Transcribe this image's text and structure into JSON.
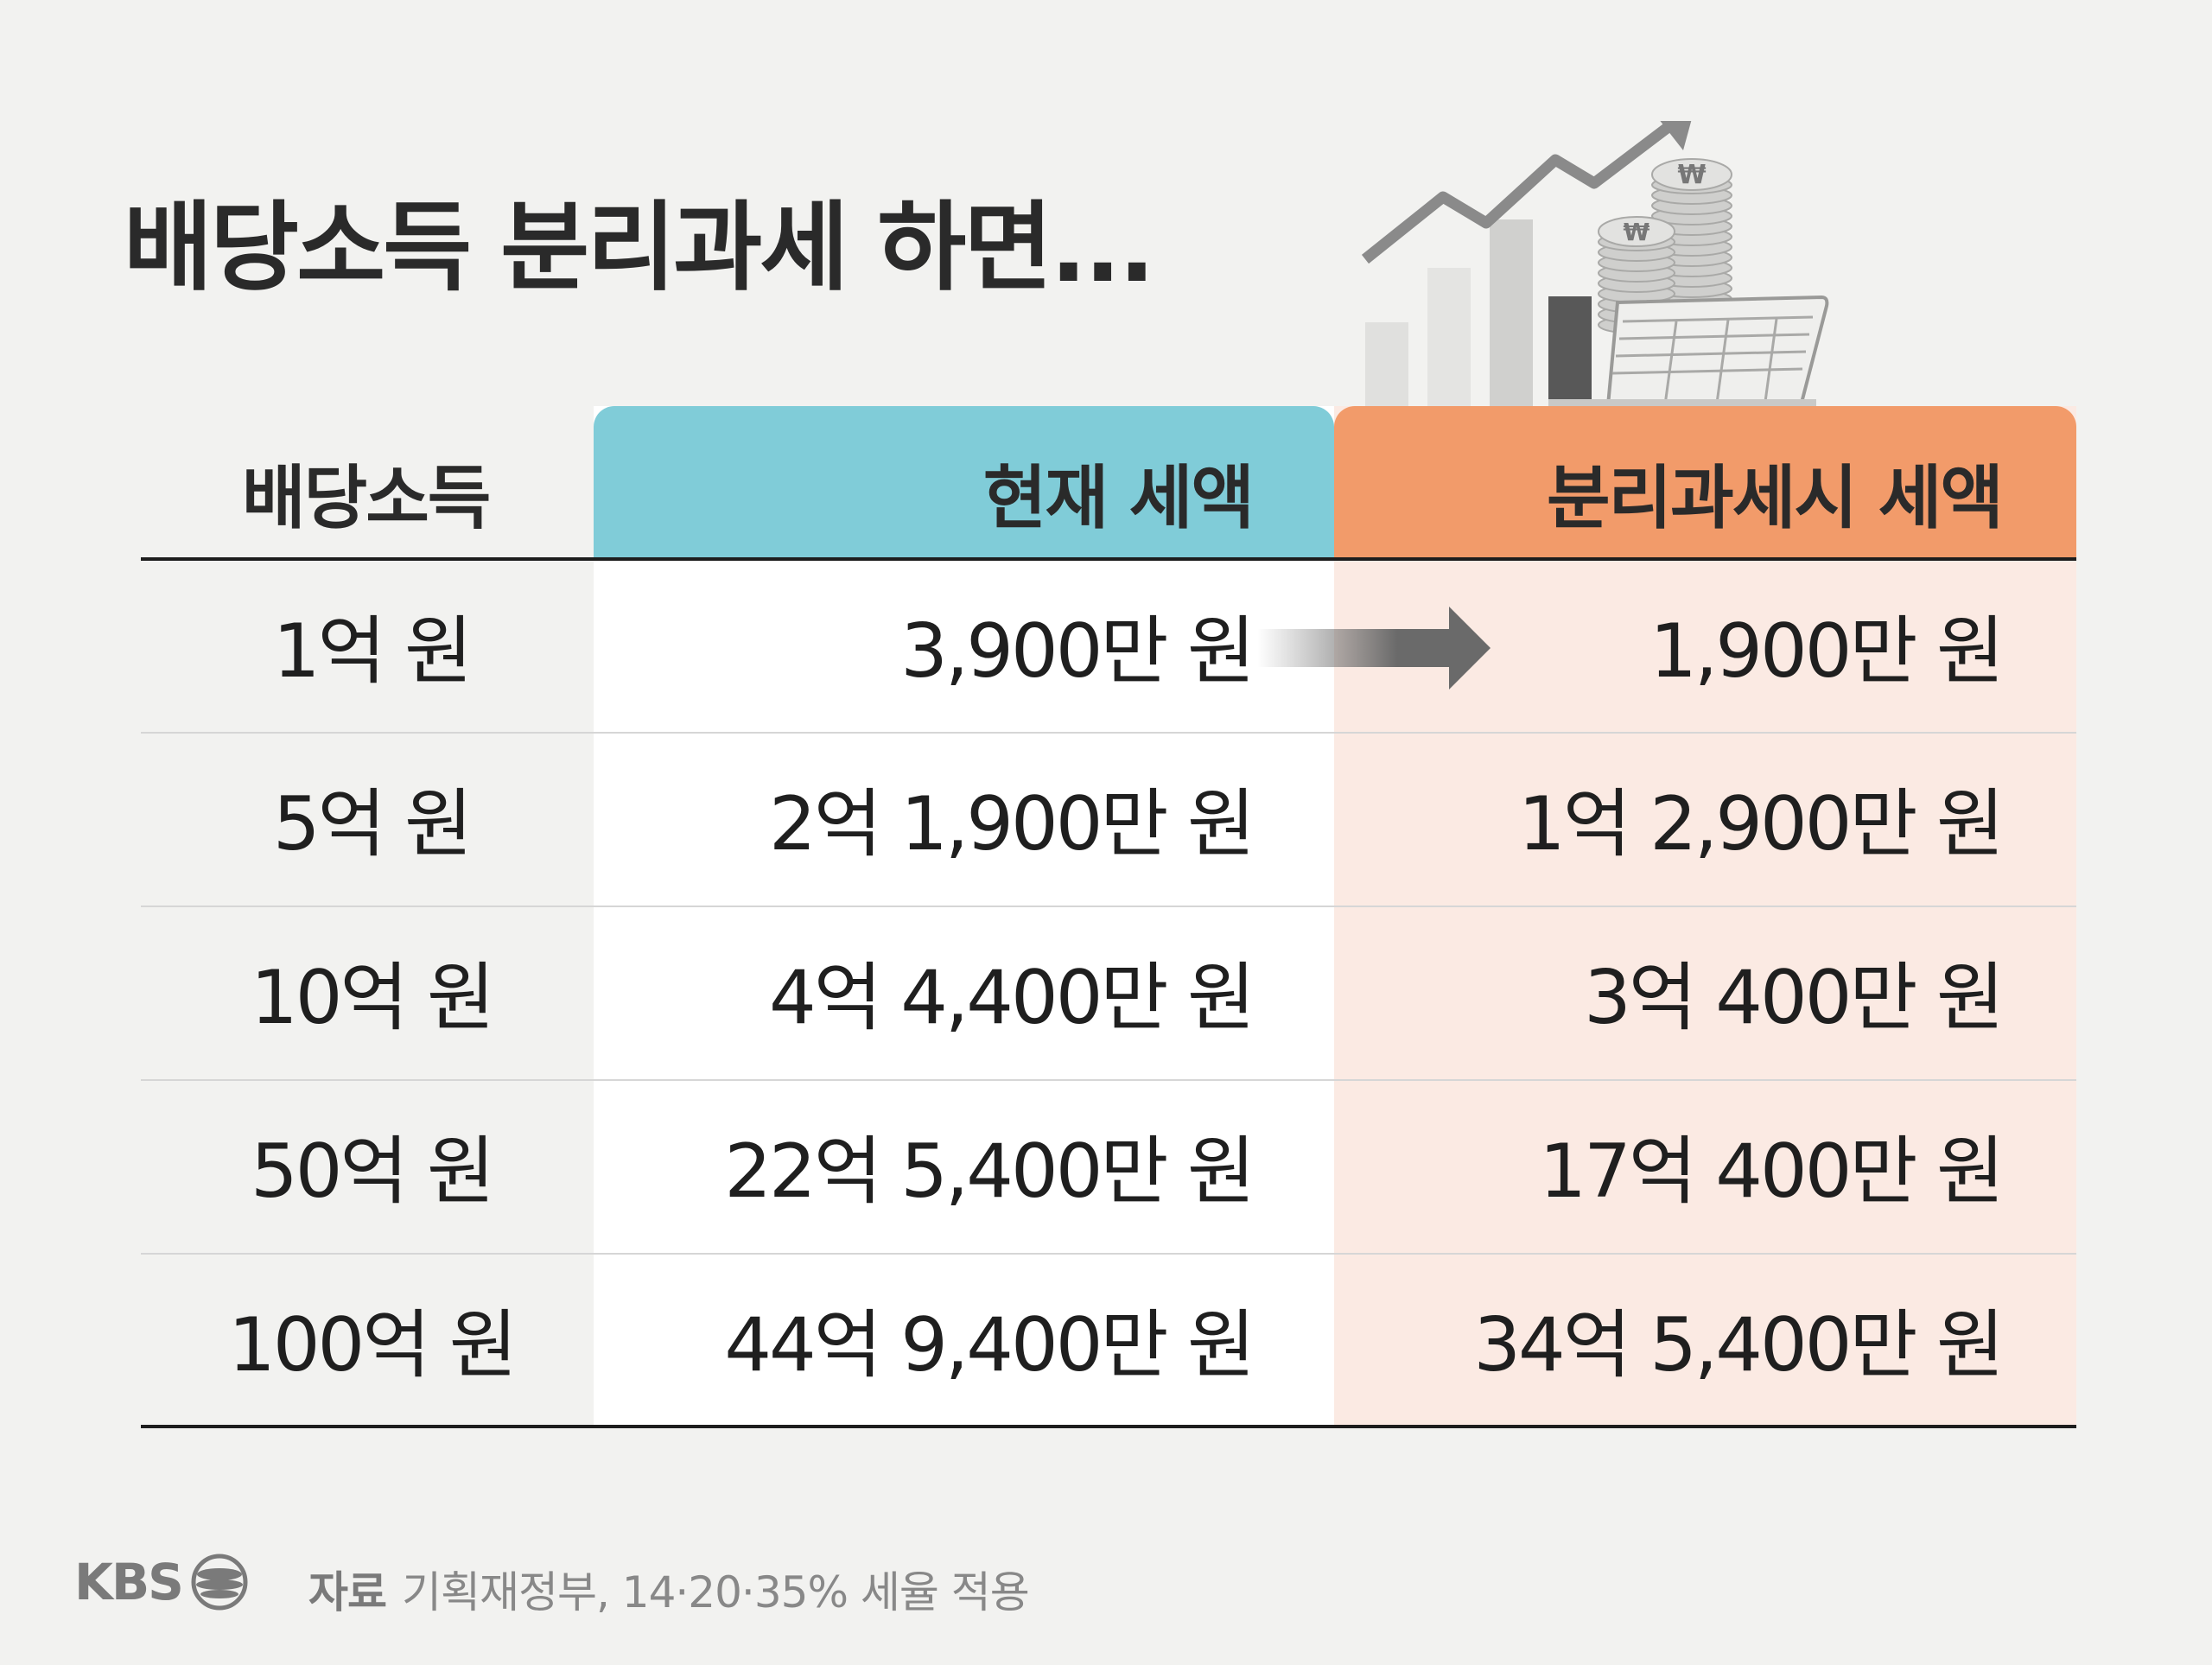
{
  "title": "배당소득 분리과세 하면...",
  "chart_data": {
    "type": "table",
    "columns": [
      "배당소득",
      "현재 세액",
      "분리과세시 세액"
    ],
    "rows": [
      [
        "1억 원",
        "3,900만 원",
        "1,900만 원"
      ],
      [
        "5억 원",
        "2억 1,900만 원",
        "1억 2,900만 원"
      ],
      [
        "10억 원",
        "4억 4,400만 원",
        "3억 400만 원"
      ],
      [
        "50억 원",
        "22억 5,400만 원",
        "17억 400만 원"
      ],
      [
        "100억 원",
        "44억 9,400만 원",
        "34억 5,400만 원"
      ]
    ]
  },
  "colors": {
    "current_header": "#80ccd8",
    "separate_header": "#f29b6a",
    "separate_column": "#fbeae3",
    "background": "#f2f2f0"
  },
  "footer": {
    "logo": "KBS",
    "source_label": "자료",
    "source_text": "기획재정부, 14·20·35% 세율 적용"
  }
}
